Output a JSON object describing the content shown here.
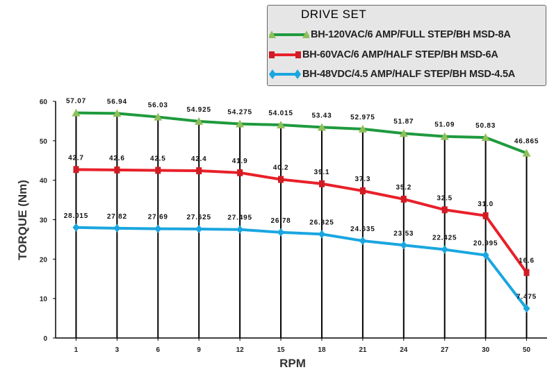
{
  "chart_data": {
    "type": "line",
    "xlabel": "RPM",
    "ylabel": "TORQUE (Nm)",
    "categories": [
      "1",
      "3",
      "6",
      "9",
      "12",
      "15",
      "18",
      "21",
      "24",
      "27",
      "30",
      "50"
    ],
    "ylim": [
      0,
      60
    ],
    "yticks": [
      "0",
      "10",
      "20",
      "30",
      "40",
      "50",
      "60"
    ],
    "grid": false,
    "legend": {
      "title": "DRIVE SET",
      "position": "top-right"
    },
    "series": [
      {
        "name": "BH-120VAC/6 AMP/FULL STEP/BH MSD-8A",
        "color": "#1f9a3e",
        "marker": "triangle",
        "values": [
          57.07,
          56.94,
          56.03,
          54.925,
          54.275,
          54.015,
          53.43,
          52.975,
          51.87,
          51.09,
          50.83,
          46.865
        ],
        "labels": [
          "57.07",
          "56.94",
          "56.03",
          "54.925",
          "54.275",
          "54.015",
          "53.43",
          "52.975",
          "51.87",
          "51.09",
          "50.83",
          "46.865"
        ]
      },
      {
        "name": "BH-60VAC/6 AMP/HALF STEP/BH MSD-6A",
        "color": "#e8202a",
        "marker": "square",
        "values": [
          42.7,
          42.6,
          42.5,
          42.4,
          41.9,
          40.2,
          39.1,
          37.3,
          35.2,
          32.5,
          31.0,
          16.6
        ],
        "labels": [
          "42.7",
          "42.6",
          "42.5",
          "42.4",
          "41.9",
          "40.2",
          "39.1",
          "37.3",
          "35.2",
          "32.5",
          "31.0",
          "16.6"
        ]
      },
      {
        "name": "BH-48VDC/4.5 AMP/HALF STEP/BH MSD-4.5A",
        "color": "#1aa6e0",
        "marker": "diamond",
        "values": [
          28.015,
          27.82,
          27.69,
          27.625,
          27.495,
          26.78,
          26.325,
          24.635,
          23.53,
          22.425,
          20.995,
          7.475
        ],
        "labels": [
          "28.015",
          "27.82",
          "27.69",
          "27.625",
          "27.495",
          "26.78",
          "26.325",
          "24.635",
          "23.53",
          "22.425",
          "20.995",
          "7.475"
        ]
      }
    ]
  }
}
